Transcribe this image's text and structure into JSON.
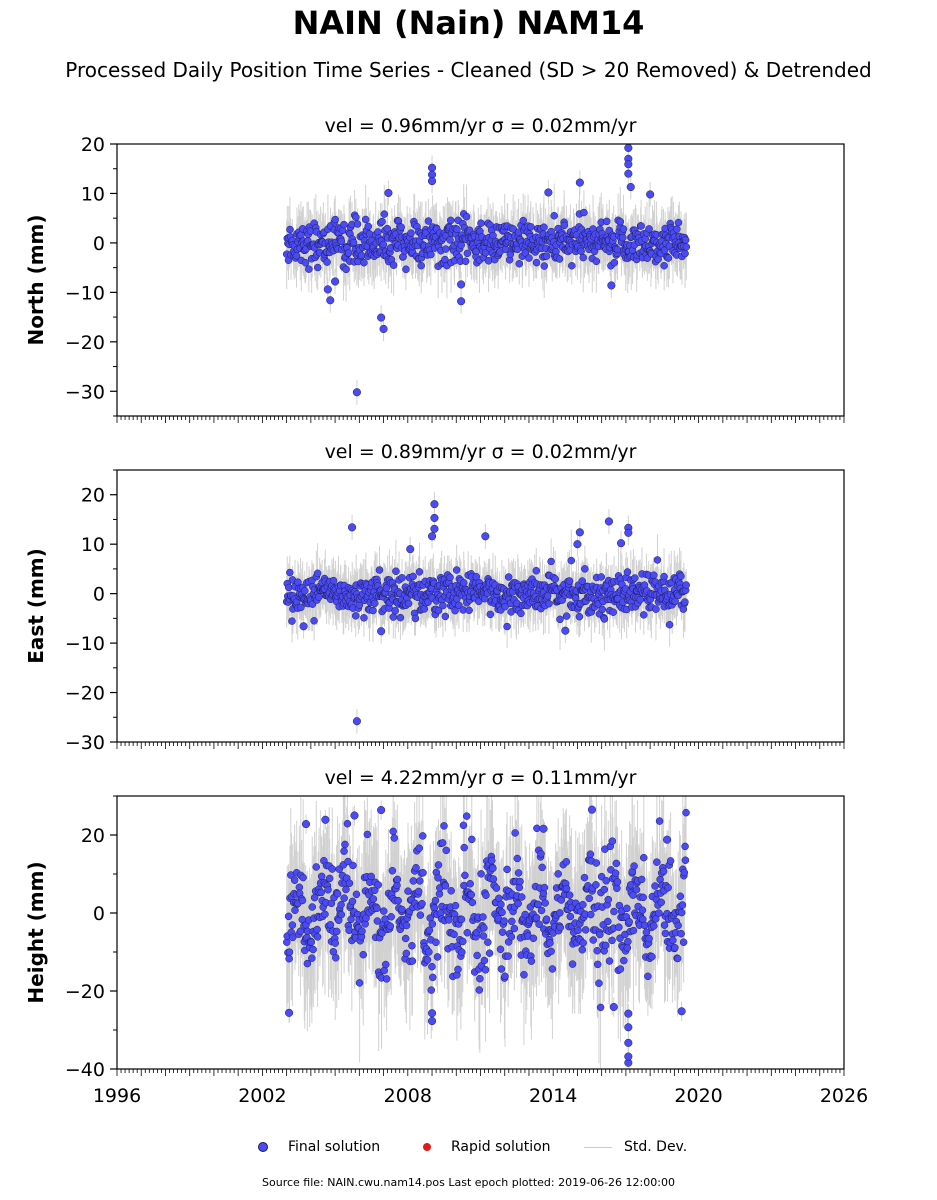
{
  "title": "NAIN (Nain) NAM14",
  "subtitle": "Processed Daily Position Time Series - Cleaned (SD > 20 Removed) & Detrended",
  "legend": {
    "final": "Final solution",
    "rapid": "Rapid solution",
    "stddev": "Std. Dev."
  },
  "footer": "Source file: NAIN.cwu.nam14.pos  Last epoch plotted: 2019-06-26 12:00:00",
  "colors": {
    "final": "#4b4bf5",
    "final_edge": "#1a1a55",
    "rapid": "#e31a1c",
    "stddev": "#9a9a9a"
  },
  "chart_data": [
    {
      "type": "scatter",
      "title": "vel = 0.96mm/yr   σ = 0.02mm/yr",
      "xlabel": "",
      "ylabel": "North (mm)",
      "xlim": [
        1996,
        2026
      ],
      "ylim": [
        -35,
        20
      ],
      "yticks": [
        20,
        10,
        0,
        -10,
        -20,
        -30
      ],
      "data_range": [
        2003.0,
        2019.49
      ],
      "series": [
        {
          "name": "Final solution",
          "spread": 2.2,
          "outliers": [
            {
              "x": 2005.9,
              "y": -30.2
            },
            {
              "x": 2006.9,
              "y": -15.1
            },
            {
              "x": 2007.0,
              "y": -17.4
            },
            {
              "x": 2004.8,
              "y": -11.6
            },
            {
              "x": 2004.7,
              "y": -9.4
            },
            {
              "x": 2005.0,
              "y": -7.8
            },
            {
              "x": 2009.0,
              "y": 15.2
            },
            {
              "x": 2009.0,
              "y": 13.8
            },
            {
              "x": 2009.0,
              "y": 12.5
            },
            {
              "x": 2010.2,
              "y": -8.4
            },
            {
              "x": 2010.2,
              "y": -11.8
            },
            {
              "x": 2015.1,
              "y": 12.2
            },
            {
              "x": 2017.1,
              "y": 19.2
            },
            {
              "x": 2017.1,
              "y": 17.0
            },
            {
              "x": 2017.1,
              "y": 15.9
            },
            {
              "x": 2017.1,
              "y": 14.0
            },
            {
              "x": 2017.2,
              "y": 11.3
            },
            {
              "x": 2018.0,
              "y": 9.8
            },
            {
              "x": 2016.4,
              "y": -8.6
            },
            {
              "x": 2007.2,
              "y": 10.1
            },
            {
              "x": 2013.8,
              "y": 10.2
            }
          ]
        }
      ]
    },
    {
      "type": "scatter",
      "title": "vel = 0.89mm/yr   σ = 0.02mm/yr",
      "xlabel": "",
      "ylabel": "East (mm)",
      "xlim": [
        1996,
        2026
      ],
      "ylim": [
        -30,
        25
      ],
      "yticks": [
        20,
        10,
        0,
        -10,
        -20,
        -30
      ],
      "data_range": [
        2003.0,
        2019.49
      ],
      "series": [
        {
          "name": "Final solution",
          "spread": 2.0,
          "outliers": [
            {
              "x": 2005.9,
              "y": -25.8
            },
            {
              "x": 2005.7,
              "y": 13.4
            },
            {
              "x": 2009.1,
              "y": 18.1
            },
            {
              "x": 2009.1,
              "y": 15.3
            },
            {
              "x": 2009.1,
              "y": 13.1
            },
            {
              "x": 2009.0,
              "y": 11.6
            },
            {
              "x": 2016.3,
              "y": 14.6
            },
            {
              "x": 2017.1,
              "y": 13.3
            },
            {
              "x": 2017.1,
              "y": 12.3
            },
            {
              "x": 2015.1,
              "y": 12.4
            },
            {
              "x": 2015.0,
              "y": 10.0
            },
            {
              "x": 2003.7,
              "y": -6.6
            },
            {
              "x": 2006.9,
              "y": -7.6
            },
            {
              "x": 2014.5,
              "y": -7.5
            },
            {
              "x": 2011.2,
              "y": 11.6
            },
            {
              "x": 2016.8,
              "y": 10.2
            },
            {
              "x": 2008.1,
              "y": 9.0
            }
          ]
        }
      ]
    },
    {
      "type": "scatter",
      "title": "vel = 4.22mm/yr   σ = 0.11mm/yr",
      "xlabel": "",
      "ylabel": "Height (mm)",
      "xlim": [
        1996,
        2026
      ],
      "ylim": [
        -40,
        30
      ],
      "yticks": [
        20,
        0,
        -20,
        -40
      ],
      "xticks": [
        1996,
        2002,
        2008,
        2014,
        2020,
        2026
      ],
      "data_range": [
        2003.0,
        2019.49
      ],
      "series": [
        {
          "name": "Final solution",
          "spread": 6.5,
          "seasonal_amplitude": 7,
          "outliers": [
            {
              "x": 2017.1,
              "y": -38.4
            },
            {
              "x": 2017.1,
              "y": -36.8
            },
            {
              "x": 2017.1,
              "y": -33.3
            },
            {
              "x": 2017.1,
              "y": -29.3
            },
            {
              "x": 2017.1,
              "y": -25.8
            },
            {
              "x": 2003.1,
              "y": -25.6
            },
            {
              "x": 2009.0,
              "y": -27.7
            },
            {
              "x": 2009.0,
              "y": -25.7
            },
            {
              "x": 2015.6,
              "y": 26.5
            },
            {
              "x": 2006.9,
              "y": 26.4
            },
            {
              "x": 2005.8,
              "y": 25.0
            },
            {
              "x": 2004.6,
              "y": 23.9
            },
            {
              "x": 2003.8,
              "y": 22.8
            },
            {
              "x": 2013.6,
              "y": 21.6
            },
            {
              "x": 2016.5,
              "y": -24.1
            },
            {
              "x": 2019.3,
              "y": -25.2
            },
            {
              "x": 2018.7,
              "y": 18.8
            }
          ]
        }
      ]
    }
  ]
}
